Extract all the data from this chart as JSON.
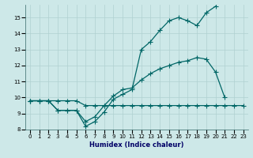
{
  "xlabel": "Humidex (Indice chaleur)",
  "bg_color": "#cde8e8",
  "grid_color": "#b0d0d0",
  "line_color": "#006666",
  "x": [
    0,
    1,
    2,
    3,
    4,
    5,
    6,
    7,
    8,
    9,
    10,
    11,
    12,
    13,
    14,
    15,
    16,
    17,
    18,
    19,
    20,
    21,
    22,
    23
  ],
  "line1": [
    9.8,
    9.8,
    9.8,
    9.2,
    9.2,
    9.2,
    8.2,
    8.5,
    9.1,
    9.9,
    10.2,
    10.5,
    13.0,
    13.5,
    14.2,
    14.8,
    15.0,
    14.8,
    14.5,
    15.3,
    15.7,
    null,
    null,
    null
  ],
  "line2": [
    9.8,
    9.8,
    9.8,
    9.2,
    9.2,
    9.2,
    8.5,
    8.8,
    9.5,
    10.1,
    10.5,
    10.6,
    11.1,
    11.5,
    11.8,
    12.0,
    12.2,
    12.3,
    12.5,
    12.4,
    11.6,
    10.0,
    null,
    null
  ],
  "line3": [
    9.8,
    9.8,
    9.8,
    9.8,
    9.8,
    9.8,
    9.5,
    9.5,
    9.5,
    9.5,
    9.5,
    9.5,
    9.5,
    9.5,
    9.5,
    9.5,
    9.5,
    9.5,
    9.5,
    9.5,
    9.5,
    9.5,
    9.5,
    9.5
  ],
  "ylim": [
    8.0,
    15.8
  ],
  "xlim": [
    -0.5,
    23.5
  ],
  "yticks": [
    8,
    9,
    10,
    11,
    12,
    13,
    14,
    15
  ],
  "xticks": [
    0,
    1,
    2,
    3,
    4,
    5,
    6,
    7,
    8,
    9,
    10,
    11,
    12,
    13,
    14,
    15,
    16,
    17,
    18,
    19,
    20,
    21,
    22,
    23
  ],
  "xlabel_color": "#000066",
  "xlabel_fontsize": 6.0,
  "tick_fontsize": 5.0,
  "marker": "+",
  "markersize": 4.0,
  "linewidth": 0.9
}
